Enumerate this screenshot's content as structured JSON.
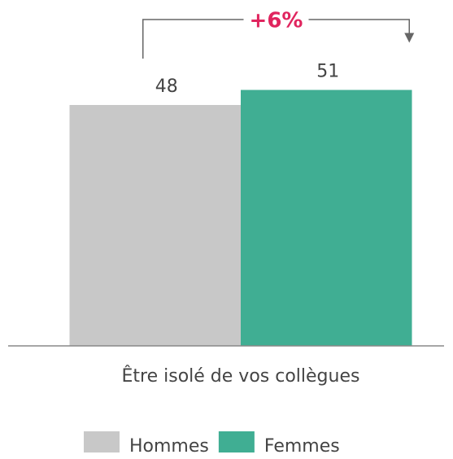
{
  "chart_data": {
    "type": "bar",
    "categories": [
      "Être isolé de vos collègues"
    ],
    "series": [
      {
        "name": "Hommes",
        "color": "#c8c8c8",
        "values": [
          48
        ]
      },
      {
        "name": "Femmes",
        "color": "#40ae93",
        "values": [
          51
        ]
      }
    ],
    "ylim": [
      0,
      60
    ],
    "annotation": "+6%",
    "annotation_color": "#e0245e",
    "legend": "bottom"
  }
}
